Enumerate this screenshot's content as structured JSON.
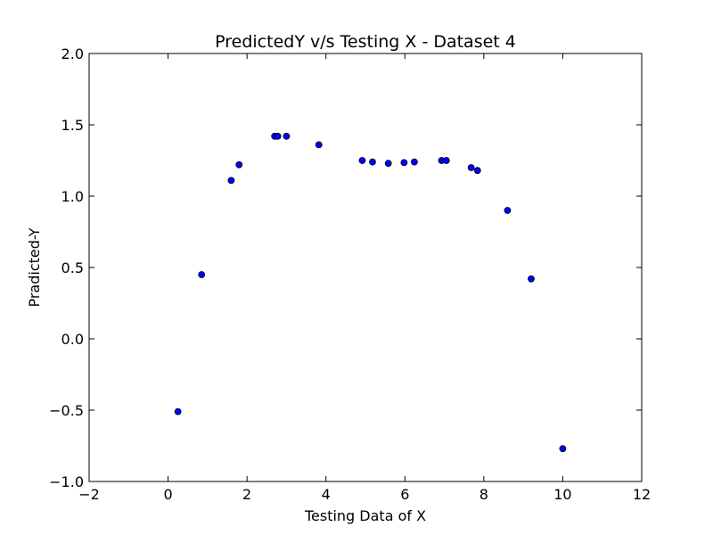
{
  "chart_data": {
    "type": "scatter",
    "title": "PredictedY v/s Testing X - Dataset 4",
    "xlabel": "Testing Data of X",
    "ylabel": "Pradicted-Y",
    "xlim": [
      -2,
      12
    ],
    "ylim": [
      -1.0,
      2.0
    ],
    "xticks": [
      -2,
      0,
      2,
      4,
      6,
      8,
      10,
      12
    ],
    "xtick_labels": [
      "−2",
      "0",
      "2",
      "4",
      "6",
      "8",
      "10",
      "12"
    ],
    "yticks": [
      -1.0,
      -0.5,
      0.0,
      0.5,
      1.0,
      1.5,
      2.0
    ],
    "ytick_labels": [
      "−1.0",
      "−0.5",
      "0.0",
      "0.5",
      "1.0",
      "1.5",
      "2.0"
    ],
    "grid": false,
    "marker_color": "#0000ff",
    "marker_edge_color": "#000000",
    "points": [
      {
        "x": 0.25,
        "y": -0.51
      },
      {
        "x": 0.85,
        "y": 0.45
      },
      {
        "x": 1.6,
        "y": 1.11
      },
      {
        "x": 1.8,
        "y": 1.22
      },
      {
        "x": 2.7,
        "y": 1.42
      },
      {
        "x": 2.78,
        "y": 1.42
      },
      {
        "x": 3.0,
        "y": 1.42
      },
      {
        "x": 3.82,
        "y": 1.36
      },
      {
        "x": 4.92,
        "y": 1.25
      },
      {
        "x": 5.18,
        "y": 1.24
      },
      {
        "x": 5.58,
        "y": 1.23
      },
      {
        "x": 5.98,
        "y": 1.235
      },
      {
        "x": 6.24,
        "y": 1.24
      },
      {
        "x": 6.93,
        "y": 1.25
      },
      {
        "x": 7.05,
        "y": 1.25
      },
      {
        "x": 7.68,
        "y": 1.2
      },
      {
        "x": 7.84,
        "y": 1.18
      },
      {
        "x": 8.6,
        "y": 0.9
      },
      {
        "x": 9.2,
        "y": 0.42
      },
      {
        "x": 10.0,
        "y": -0.77
      }
    ]
  }
}
